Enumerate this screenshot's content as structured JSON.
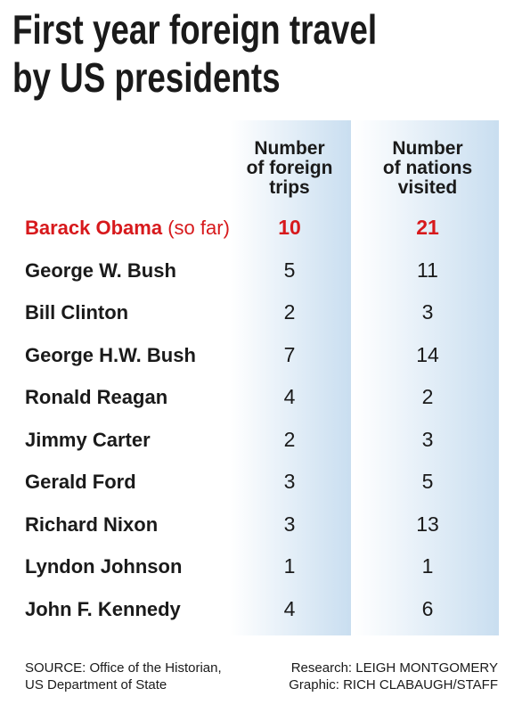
{
  "header": {
    "title": [
      "First year foreign travel",
      "by US presidents"
    ]
  },
  "table": {
    "columns": [
      [
        "Number",
        "of foreign",
        "trips"
      ],
      [
        "Number",
        "of nations",
        "visited"
      ]
    ],
    "rows": [
      {
        "name": "Barack Obama",
        "note": "(so far)",
        "trips": 10,
        "nations": 21
      },
      {
        "name": "George W. Bush",
        "trips": 5,
        "nations": 11
      },
      {
        "name": "Bill Clinton",
        "trips": 2,
        "nations": 3
      },
      {
        "name": "George H.W. Bush",
        "trips": 7,
        "nations": 14
      },
      {
        "name": "Ronald Reagan",
        "trips": 4,
        "nations": 2
      },
      {
        "name": "Jimmy Carter",
        "trips": 2,
        "nations": 3
      },
      {
        "name": "Gerald Ford",
        "trips": 3,
        "nations": 5
      },
      {
        "name": "Richard Nixon",
        "trips": 3,
        "nations": 13
      },
      {
        "name": "Lyndon Johnson",
        "trips": 1,
        "nations": 1
      },
      {
        "name": "John F. Kennedy",
        "trips": 4,
        "nations": 6
      }
    ]
  },
  "footer": {
    "source": [
      "SOURCE: Office of the Historian,",
      "US Department of State"
    ],
    "credits": [
      "Research: LEIGH MONTGOMERY",
      "Graphic: RICH CLABAUGH/STAFF"
    ]
  }
}
